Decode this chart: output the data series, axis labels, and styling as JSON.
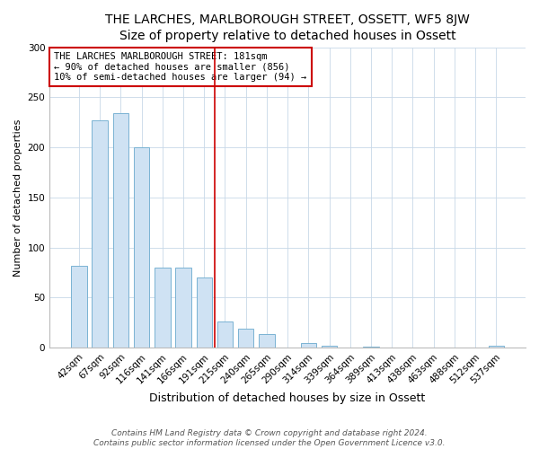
{
  "title": "THE LARCHES, MARLBOROUGH STREET, OSSETT, WF5 8JW",
  "subtitle": "Size of property relative to detached houses in Ossett",
  "xlabel": "Distribution of detached houses by size in Ossett",
  "ylabel": "Number of detached properties",
  "bar_labels": [
    "42sqm",
    "67sqm",
    "92sqm",
    "116sqm",
    "141sqm",
    "166sqm",
    "191sqm",
    "215sqm",
    "240sqm",
    "265sqm",
    "290sqm",
    "314sqm",
    "339sqm",
    "364sqm",
    "389sqm",
    "413sqm",
    "438sqm",
    "463sqm",
    "488sqm",
    "512sqm",
    "537sqm"
  ],
  "bar_values": [
    82,
    227,
    234,
    200,
    80,
    80,
    70,
    26,
    19,
    13,
    0,
    4,
    2,
    0,
    1,
    0,
    0,
    0,
    0,
    0,
    2
  ],
  "bar_color": "#cfe2f3",
  "bar_edge_color": "#7ab3d3",
  "reference_line_x": 6.5,
  "annotation_text": "THE LARCHES MARLBOROUGH STREET: 181sqm\n← 90% of detached houses are smaller (856)\n10% of semi-detached houses are larger (94) →",
  "annotation_box_color": "#ffffff",
  "annotation_box_edge_color": "#cc0000",
  "ylim": [
    0,
    300
  ],
  "yticks": [
    0,
    50,
    100,
    150,
    200,
    250,
    300
  ],
  "footer_text": "Contains HM Land Registry data © Crown copyright and database right 2024.\nContains public sector information licensed under the Open Government Licence v3.0.",
  "title_fontsize": 10,
  "subtitle_fontsize": 9,
  "xlabel_fontsize": 9,
  "ylabel_fontsize": 8,
  "tick_fontsize": 7.5,
  "annotation_fontsize": 7.5,
  "footer_fontsize": 6.5
}
